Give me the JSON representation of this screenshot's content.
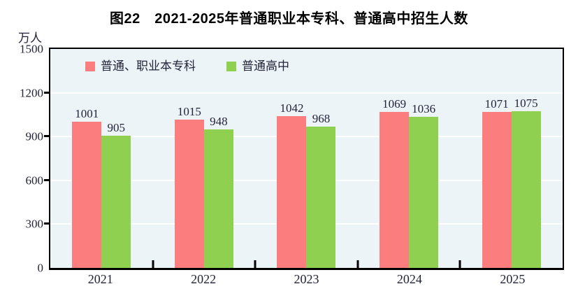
{
  "title": "图22　2021-2025年普通职业本专科、普通高中招生人数",
  "y_axis_unit": "万人",
  "colors": {
    "series_vocational": "#FC7D7D",
    "series_highschool": "#8FD051",
    "plot_background": "#EDF4F8",
    "gridline": "#FFFFFF",
    "axis_frame": "#000000",
    "text": "#23233a"
  },
  "legend": {
    "items": [
      {
        "label": "普通、职业本专科",
        "color": "#FC7D7D"
      },
      {
        "label": "普通高中",
        "color": "#8FD051"
      }
    ]
  },
  "chart_data": {
    "type": "bar",
    "title": "图22　2021-2025年普通职业本专科、普通高中招生人数",
    "categories": [
      "2021",
      "2022",
      "2023",
      "2024",
      "2025"
    ],
    "series": [
      {
        "name": "普通、职业本专科",
        "color": "#FC7D7D",
        "values": [
          1001,
          1015,
          1042,
          1069,
          1071
        ]
      },
      {
        "name": "普通高中",
        "color": "#8FD051",
        "values": [
          905,
          948,
          968,
          1036,
          1075
        ]
      }
    ],
    "xlabel": "",
    "ylabel": "万人",
    "ylim": [
      0,
      1500
    ],
    "yticks": [
      0,
      300,
      600,
      900,
      1200,
      1500
    ],
    "grid": "horizontal-white",
    "legend_position": "top-left-inside",
    "data_labels": true
  }
}
